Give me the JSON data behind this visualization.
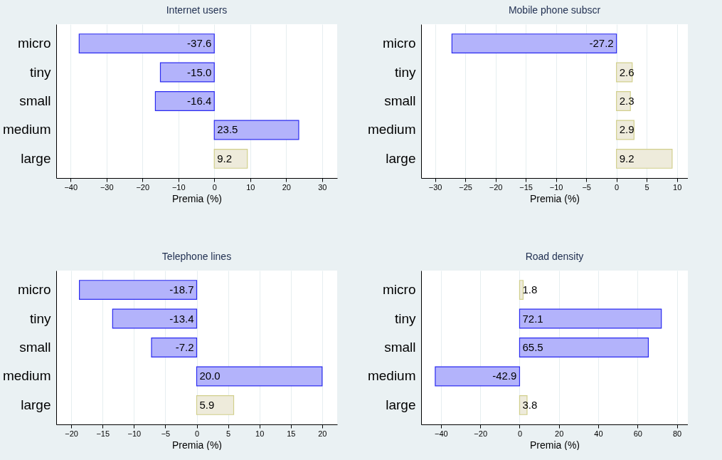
{
  "chart_data": [
    {
      "type": "bar",
      "orientation": "horizontal",
      "title": "Internet users",
      "xlabel": "Premia (%)",
      "categories": [
        "micro",
        "tiny",
        "small",
        "medium",
        "large"
      ],
      "values": [
        -37.6,
        -15.0,
        -16.4,
        23.5,
        9.2
      ],
      "value_labels": [
        "-37.6",
        "-15.0",
        "-16.4",
        "23.5",
        "9.2"
      ],
      "colors": [
        "#b3b3fb",
        "#b3b3fb",
        "#b3b3fb",
        "#b3b3fb",
        "#eeebdb"
      ],
      "xlim": [
        -44.0,
        34.2
      ],
      "xticks": [
        -40,
        -30,
        -20,
        -10,
        0,
        10,
        20,
        30
      ],
      "grid": "x"
    },
    {
      "type": "bar",
      "orientation": "horizontal",
      "title": "Mobile phone subscr",
      "xlabel": "Premia (%)",
      "categories": [
        "micro",
        "tiny",
        "small",
        "medium",
        "large"
      ],
      "values": [
        -27.2,
        2.6,
        2.3,
        2.9,
        9.2
      ],
      "value_labels": [
        "-27.2",
        "2.6",
        "2.3",
        "2.9",
        "9.2"
      ],
      "colors": [
        "#b3b3fb",
        "#eeebdb",
        "#eeebdb",
        "#eeebdb",
        "#eeebdb"
      ],
      "xlim": [
        -32.3,
        11.8
      ],
      "xticks": [
        -30,
        -25,
        -20,
        -15,
        -10,
        -5,
        0,
        5,
        10
      ],
      "grid": "x"
    },
    {
      "type": "bar",
      "orientation": "horizontal",
      "title": "Telephone lines",
      "xlabel": "Premia (%)",
      "categories": [
        "micro",
        "tiny",
        "small",
        "medium",
        "large"
      ],
      "values": [
        -18.7,
        -13.4,
        -7.2,
        20.0,
        5.9
      ],
      "value_labels": [
        "-18.7",
        "-13.4",
        "-7.2",
        "20.0",
        "5.9"
      ],
      "colors": [
        "#b3b3fb",
        "#b3b3fb",
        "#b3b3fb",
        "#b3b3fb",
        "#eeebdb"
      ],
      "xlim": [
        -22.4,
        22.4
      ],
      "xticks": [
        -20,
        -15,
        -10,
        -5,
        0,
        5,
        10,
        15,
        20
      ],
      "grid": "x"
    },
    {
      "type": "bar",
      "orientation": "horizontal",
      "title": "Road density",
      "xlabel": "Premia (%)",
      "categories": [
        "micro",
        "tiny",
        "small",
        "medium",
        "large"
      ],
      "values": [
        1.8,
        72.1,
        65.5,
        -42.9,
        3.8
      ],
      "value_labels": [
        "1.8",
        "72.1",
        "65.5",
        "-42.9",
        "3.8"
      ],
      "colors": [
        "#eeebdb",
        "#b3b3fb",
        "#b3b3fb",
        "#b3b3fb",
        "#eeebdb"
      ],
      "xlim": [
        -50.1,
        85.6
      ],
      "xticks": [
        -40,
        -20,
        0,
        20,
        40,
        60,
        80
      ],
      "grid": "x"
    }
  ]
}
